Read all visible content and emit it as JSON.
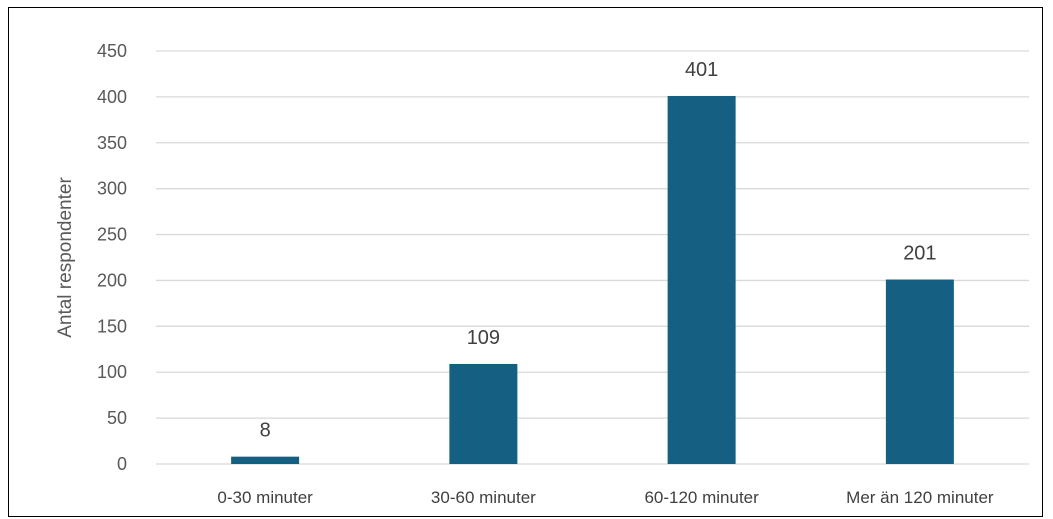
{
  "chart_data": {
    "type": "bar",
    "title": "",
    "xlabel": "",
    "ylabel": "Antal respondenter",
    "categories": [
      "0-30 minuter",
      "30-60 minuter",
      "60-120 minuter",
      "Mer än 120 minuter"
    ],
    "values": [
      8,
      109,
      401,
      201
    ],
    "data_labels": [
      "8",
      "109",
      "401",
      "201"
    ],
    "ylim": [
      0,
      450
    ],
    "yticks": [
      0,
      50,
      100,
      150,
      200,
      250,
      300,
      350,
      400,
      450
    ],
    "grid": true,
    "legend": "none",
    "bar_color": "#156082",
    "grid_color": "#d9d9d9"
  }
}
